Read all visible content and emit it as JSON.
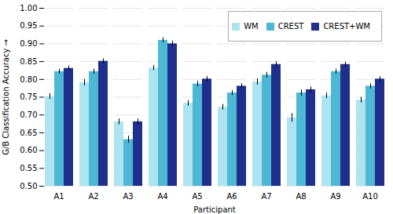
{
  "chart_data": {
    "type": "bar",
    "xlabel": "Participant",
    "ylabel": "G/B Classification Accuracy",
    "categories": [
      "A1",
      "A2",
      "A3",
      "A4",
      "A5",
      "A6",
      "A7",
      "A8",
      "A9",
      "A10"
    ],
    "series": [
      {
        "name": "WM",
        "color": "#aee4ef",
        "values": [
          0.752,
          0.791,
          0.681,
          0.832,
          0.733,
          0.722,
          0.793,
          0.692,
          0.754,
          0.742
        ],
        "err": [
          0.008,
          0.009,
          0.008,
          0.007,
          0.008,
          0.008,
          0.009,
          0.012,
          0.008,
          0.008
        ]
      },
      {
        "name": "CREST",
        "color": "#4db8d4",
        "values": [
          0.822,
          0.822,
          0.631,
          0.91,
          0.787,
          0.762,
          0.812,
          0.762,
          0.822,
          0.781
        ],
        "err": [
          0.007,
          0.007,
          0.01,
          0.007,
          0.008,
          0.007,
          0.008,
          0.009,
          0.007,
          0.007
        ]
      },
      {
        "name": "CREST+WM",
        "color": "#1f2f8c",
        "values": [
          0.831,
          0.851,
          0.681,
          0.9,
          0.801,
          0.781,
          0.842,
          0.771,
          0.842,
          0.801
        ],
        "err": [
          0.007,
          0.007,
          0.008,
          0.008,
          0.007,
          0.007,
          0.008,
          0.008,
          0.007,
          0.007
        ]
      }
    ],
    "ylim": [
      0.5,
      1.0
    ],
    "yticks": [
      {
        "value": 0.5,
        "label": "0.50"
      },
      0.55,
      {
        "value": 0.6,
        "label": "0.60"
      },
      0.65,
      {
        "value": 0.7,
        "label": "0.70"
      },
      0.75,
      {
        "value": 0.8,
        "label": "0.80"
      },
      0.85,
      {
        "value": 0.9,
        "label": "0.90"
      },
      0.95,
      {
        "value": 1.0,
        "label": "1.00"
      }
    ],
    "grid": true,
    "legend": "upper right"
  }
}
